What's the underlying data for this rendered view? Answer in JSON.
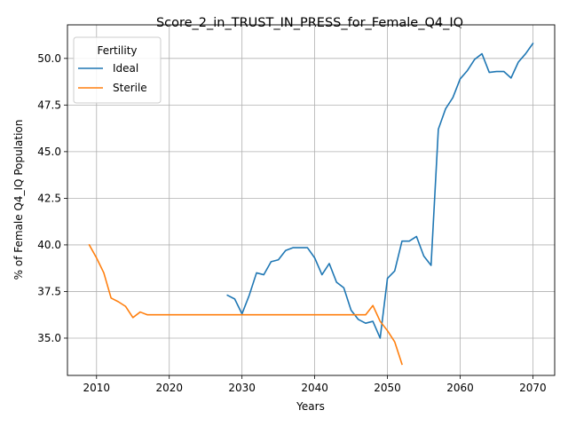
{
  "chart_data": {
    "type": "line",
    "title": "Score_2_in_TRUST_IN_PRESS_for_Female_Q4_IQ",
    "xlabel": "Years",
    "ylabel": "% of Female Q4_IQ Population",
    "xlim": [
      2006,
      2073
    ],
    "ylim": [
      33.0,
      51.8
    ],
    "xticks": [
      2010,
      2020,
      2030,
      2040,
      2050,
      2060,
      2070
    ],
    "yticks": [
      35.0,
      37.5,
      40.0,
      42.5,
      45.0,
      47.5,
      50.0
    ],
    "ytick_labels": [
      "35.0",
      "37.5",
      "40.0",
      "42.5",
      "45.0",
      "47.5",
      "50.0"
    ],
    "grid": true,
    "legend": {
      "title": "Fertility",
      "position": "top-left"
    },
    "series": [
      {
        "name": "Ideal",
        "color": "#1f77b4",
        "x": [
          2028,
          2029,
          2030,
          2031,
          2032,
          2033,
          2034,
          2035,
          2036,
          2037,
          2038,
          2039,
          2040,
          2041,
          2042,
          2043,
          2044,
          2045,
          2046,
          2047,
          2048,
          2049,
          2050,
          2051,
          2052,
          2053,
          2054,
          2055,
          2056,
          2057,
          2058,
          2059,
          2060,
          2061,
          2062,
          2063,
          2064,
          2065,
          2066,
          2067,
          2068,
          2069,
          2070
        ],
        "values": [
          37.3,
          37.1,
          36.3,
          37.3,
          38.5,
          38.4,
          39.1,
          39.2,
          39.7,
          39.85,
          39.85,
          39.85,
          39.3,
          38.4,
          39.0,
          38.0,
          37.7,
          36.5,
          36.0,
          35.8,
          35.9,
          35.0,
          38.2,
          38.6,
          40.2,
          40.2,
          40.45,
          39.4,
          38.9,
          46.2,
          47.3,
          47.9,
          48.9,
          49.35,
          49.95,
          50.25,
          49.25,
          49.3,
          49.3,
          48.95,
          49.8,
          50.25,
          50.8
        ]
      },
      {
        "name": "Sterile",
        "color": "#ff7f0e",
        "x": [
          2009,
          2010,
          2011,
          2012,
          2013,
          2014,
          2015,
          2016,
          2017,
          2018,
          2019,
          2020,
          2021,
          2022,
          2023,
          2024,
          2025,
          2026,
          2027,
          2028,
          2029,
          2030,
          2031,
          2032,
          2033,
          2034,
          2035,
          2036,
          2037,
          2038,
          2039,
          2040,
          2041,
          2042,
          2043,
          2044,
          2045,
          2046,
          2047,
          2048,
          2049,
          2050,
          2051,
          2052
        ],
        "values": [
          40.0,
          39.3,
          38.5,
          37.15,
          36.95,
          36.7,
          36.1,
          36.4,
          36.25,
          36.25,
          36.25,
          36.25,
          36.25,
          36.25,
          36.25,
          36.25,
          36.25,
          36.25,
          36.25,
          36.25,
          36.25,
          36.25,
          36.25,
          36.25,
          36.25,
          36.25,
          36.25,
          36.25,
          36.25,
          36.25,
          36.25,
          36.25,
          36.25,
          36.25,
          36.25,
          36.25,
          36.25,
          36.25,
          36.25,
          36.75,
          35.9,
          35.4,
          34.8,
          33.6
        ]
      }
    ]
  }
}
